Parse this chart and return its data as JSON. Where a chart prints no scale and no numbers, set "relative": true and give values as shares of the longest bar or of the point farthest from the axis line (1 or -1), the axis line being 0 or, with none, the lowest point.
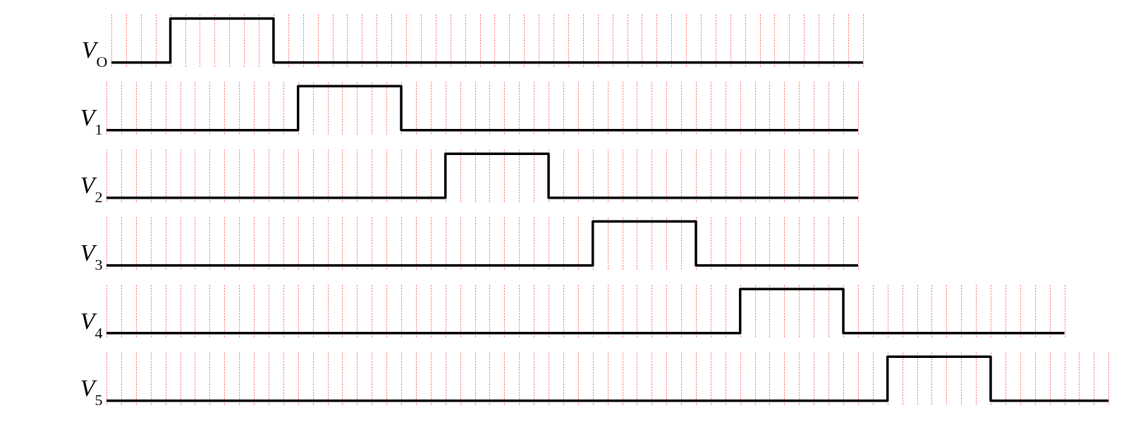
{
  "chart_data": [
    {
      "type": "step",
      "ylabel": "V$_{O}$",
      "relative": true,
      "grid": "x",
      "marker": "none",
      "line_style": "solid",
      "categories": [
        null,
        null,
        null,
        null,
        null,
        null,
        null,
        null,
        null,
        null,
        null,
        null,
        null,
        null,
        null,
        null,
        null,
        null,
        null,
        null,
        null,
        null,
        null,
        null,
        null,
        null,
        null,
        null,
        null,
        null,
        null,
        null,
        null,
        null,
        null,
        null,
        null,
        null,
        null,
        null,
        null,
        null,
        null,
        null,
        null,
        null,
        null,
        null,
        null,
        null,
        null,
        null
      ],
      "series": [
        {
          "color": "#000000",
          "values": [
            0,
            0,
            0,
            0,
            1,
            1,
            1,
            1,
            1,
            1,
            1,
            0,
            0,
            0,
            0,
            0,
            0,
            0,
            0,
            0,
            0,
            0,
            0,
            0,
            0,
            0,
            0,
            0,
            0,
            0,
            0,
            0,
            0,
            0,
            0,
            0,
            0,
            0,
            0,
            0,
            0,
            0,
            0,
            0,
            0,
            0,
            0,
            0,
            0,
            0,
            0,
            0
          ]
        }
      ]
    },
    {
      "type": "step",
      "ylabel": "V$_{1}$",
      "relative": true,
      "grid": "x",
      "marker": "none",
      "line_style": "solid",
      "categories": [
        null,
        null,
        null,
        null,
        null,
        null,
        null,
        null,
        null,
        null,
        null,
        null,
        null,
        null,
        null,
        null,
        null,
        null,
        null,
        null,
        null,
        null,
        null,
        null,
        null,
        null,
        null,
        null,
        null,
        null,
        null,
        null,
        null,
        null,
        null,
        null,
        null,
        null,
        null,
        null,
        null,
        null,
        null,
        null,
        null,
        null,
        null,
        null,
        null,
        null,
        null,
        null
      ],
      "series": [
        {
          "color": "#000000",
          "values": [
            0,
            0,
            0,
            0,
            0,
            0,
            0,
            0,
            0,
            0,
            0,
            0,
            0,
            1,
            1,
            1,
            1,
            1,
            1,
            1,
            0,
            0,
            0,
            0,
            0,
            0,
            0,
            0,
            0,
            0,
            0,
            0,
            0,
            0,
            0,
            0,
            0,
            0,
            0,
            0,
            0,
            0,
            0,
            0,
            0,
            0,
            0,
            0,
            0,
            0,
            0,
            0
          ]
        }
      ]
    },
    {
      "type": "step",
      "ylabel": "V$_{2}$",
      "relative": true,
      "grid": "x",
      "marker": "none",
      "line_style": "solid",
      "categories": [
        null,
        null,
        null,
        null,
        null,
        null,
        null,
        null,
        null,
        null,
        null,
        null,
        null,
        null,
        null,
        null,
        null,
        null,
        null,
        null,
        null,
        null,
        null,
        null,
        null,
        null,
        null,
        null,
        null,
        null,
        null,
        null,
        null,
        null,
        null,
        null,
        null,
        null,
        null,
        null,
        null,
        null,
        null,
        null,
        null,
        null,
        null,
        null,
        null,
        null,
        null,
        null
      ],
      "series": [
        {
          "color": "#000000",
          "values": [
            0,
            0,
            0,
            0,
            0,
            0,
            0,
            0,
            0,
            0,
            0,
            0,
            0,
            0,
            0,
            0,
            0,
            0,
            0,
            0,
            0,
            0,
            0,
            1,
            1,
            1,
            1,
            1,
            1,
            1,
            0,
            0,
            0,
            0,
            0,
            0,
            0,
            0,
            0,
            0,
            0,
            0,
            0,
            0,
            0,
            0,
            0,
            0,
            0,
            0,
            0,
            0
          ]
        }
      ]
    },
    {
      "type": "step",
      "ylabel": "V$_{3}$",
      "relative": true,
      "grid": "x",
      "marker": "none",
      "line_style": "solid",
      "categories": [
        null,
        null,
        null,
        null,
        null,
        null,
        null,
        null,
        null,
        null,
        null,
        null,
        null,
        null,
        null,
        null,
        null,
        null,
        null,
        null,
        null,
        null,
        null,
        null,
        null,
        null,
        null,
        null,
        null,
        null,
        null,
        null,
        null,
        null,
        null,
        null,
        null,
        null,
        null,
        null,
        null,
        null,
        null,
        null,
        null,
        null,
        null,
        null,
        null,
        null,
        null,
        null
      ],
      "series": [
        {
          "color": "#000000",
          "values": [
            0,
            0,
            0,
            0,
            0,
            0,
            0,
            0,
            0,
            0,
            0,
            0,
            0,
            0,
            0,
            0,
            0,
            0,
            0,
            0,
            0,
            0,
            0,
            0,
            0,
            0,
            0,
            0,
            0,
            0,
            0,
            0,
            0,
            1,
            1,
            1,
            1,
            1,
            1,
            1,
            0,
            0,
            0,
            0,
            0,
            0,
            0,
            0,
            0,
            0,
            0,
            0
          ]
        }
      ]
    },
    {
      "type": "step",
      "ylabel": "V$_{4}$",
      "relative": true,
      "grid": "x",
      "marker": "none",
      "line_style": "solid",
      "categories": [
        null,
        null,
        null,
        null,
        null,
        null,
        null,
        null,
        null,
        null,
        null,
        null,
        null,
        null,
        null,
        null,
        null,
        null,
        null,
        null,
        null,
        null,
        null,
        null,
        null,
        null,
        null,
        null,
        null,
        null,
        null,
        null,
        null,
        null,
        null,
        null,
        null,
        null,
        null,
        null,
        null,
        null,
        null,
        null,
        null,
        null,
        null,
        null,
        null,
        null,
        null,
        null,
        null,
        null,
        null,
        null,
        null,
        null,
        null,
        null,
        null,
        null,
        null,
        null,
        null,
        null
      ],
      "series": [
        {
          "color": "#000000",
          "values": [
            0,
            0,
            0,
            0,
            0,
            0,
            0,
            0,
            0,
            0,
            0,
            0,
            0,
            0,
            0,
            0,
            0,
            0,
            0,
            0,
            0,
            0,
            0,
            0,
            0,
            0,
            0,
            0,
            0,
            0,
            0,
            0,
            0,
            0,
            0,
            0,
            0,
            0,
            0,
            0,
            0,
            0,
            0,
            1,
            1,
            1,
            1,
            1,
            1,
            1,
            0,
            0,
            0,
            0,
            0,
            0,
            0,
            0,
            0,
            0,
            0,
            0,
            0,
            0,
            0,
            0
          ]
        }
      ]
    },
    {
      "type": "step",
      "ylabel": "V$_{5}$",
      "relative": true,
      "grid": "x",
      "marker": "none",
      "line_style": "solid",
      "categories": [
        null,
        null,
        null,
        null,
        null,
        null,
        null,
        null,
        null,
        null,
        null,
        null,
        null,
        null,
        null,
        null,
        null,
        null,
        null,
        null,
        null,
        null,
        null,
        null,
        null,
        null,
        null,
        null,
        null,
        null,
        null,
        null,
        null,
        null,
        null,
        null,
        null,
        null,
        null,
        null,
        null,
        null,
        null,
        null,
        null,
        null,
        null,
        null,
        null,
        null,
        null,
        null,
        null,
        null,
        null,
        null,
        null,
        null,
        null,
        null,
        null,
        null,
        null,
        null,
        null,
        null,
        null,
        null,
        null
      ],
      "series": [
        {
          "color": "#000000",
          "values": [
            0,
            0,
            0,
            0,
            0,
            0,
            0,
            0,
            0,
            0,
            0,
            0,
            0,
            0,
            0,
            0,
            0,
            0,
            0,
            0,
            0,
            0,
            0,
            0,
            0,
            0,
            0,
            0,
            0,
            0,
            0,
            0,
            0,
            0,
            0,
            0,
            0,
            0,
            0,
            0,
            0,
            0,
            0,
            0,
            0,
            0,
            0,
            0,
            0,
            0,
            0,
            0,
            0,
            1,
            1,
            1,
            1,
            1,
            1,
            1,
            0,
            0,
            0,
            0,
            0,
            0,
            0,
            0,
            0
          ]
        }
      ]
    }
  ]
}
